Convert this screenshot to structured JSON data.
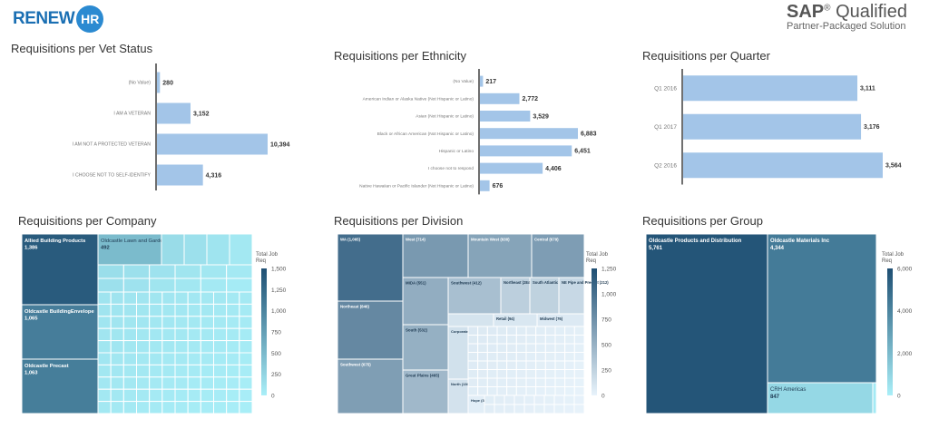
{
  "header": {
    "logo_text": "RENEW",
    "logo_mark": "HR",
    "sap_brand": "SAP",
    "sap_reg": "®",
    "sap_word": "Qualified",
    "sap_subtitle": "Partner-Packaged Solution"
  },
  "chart_data": [
    {
      "type": "bar",
      "orientation": "horizontal",
      "title": "Requisitions per Vet Status",
      "categories": [
        "(No Value)",
        "I AM A VETERAN",
        "I AM NOT A PROTECTED VETERAN",
        "I CHOOSE NOT TO SELF-IDENTIFY"
      ],
      "values": [
        280,
        3152,
        10394,
        4316
      ],
      "value_labels": [
        "280",
        "3,152",
        "10,394",
        "4,316"
      ],
      "color": "#a3c5e8"
    },
    {
      "type": "bar",
      "orientation": "horizontal",
      "title": "Requisitions per Ethnicity",
      "categories": [
        "(No Value)",
        "American Indian or Alaska Native (Not Hispanic or Latino)",
        "Asian (Not Hispanic or Latino)",
        "Black or African American (Not Hispanic or Latino)",
        "Hispanic or Latino",
        "I choose not to respond",
        "Native Hawaiian or Pacific Islander (Not Hispanic or Latino)"
      ],
      "values": [
        217,
        2772,
        3529,
        6883,
        6451,
        4406,
        676
      ],
      "value_labels": [
        "217",
        "2,772",
        "3,529",
        "6,883",
        "6,451",
        "4,406",
        "676"
      ],
      "color": "#a3c5e8"
    },
    {
      "type": "bar",
      "orientation": "horizontal",
      "title": "Requisitions per Quarter",
      "categories": [
        "Q1 2016",
        "Q1 2017",
        "Q2 2016"
      ],
      "values": [
        3111,
        3176,
        3564
      ],
      "value_labels": [
        "3,111",
        "3,176",
        "3,564"
      ],
      "color": "#a3c5e8"
    },
    {
      "type": "treemap",
      "title": "Requisitions per Company",
      "legend_title": "Total Job Req",
      "legend_ticks": [
        "1,500",
        "1,250",
        "1,000",
        "750",
        "500",
        "250",
        "0"
      ],
      "color_range": [
        "#1e4f73",
        "#a9eff8"
      ],
      "max": 1500,
      "items": [
        {
          "name": "Allied Building Products",
          "value_label": "1,386",
          "value": 1386
        },
        {
          "name": "Oldcastle BuildingEnvelope",
          "value_label": "1,065",
          "value": 1065
        },
        {
          "name": "Oldcastle Precast",
          "value_label": "1,063",
          "value": 1063
        },
        {
          "name": "Oldcastle Lawn and Garden",
          "value_label": "492",
          "value": 492
        }
      ]
    },
    {
      "type": "treemap",
      "title": "Requisitions per Division",
      "legend_title": "Total Job Req",
      "legend_ticks": [
        "1,250",
        "1,000",
        "750",
        "500",
        "250",
        "0"
      ],
      "color_range": [
        "#1e4f73",
        "#e8f3fb"
      ],
      "max": 1300,
      "items": [
        {
          "name": "WA (1,065)",
          "value": 1065
        },
        {
          "name": "Northeast (846)",
          "value": 846
        },
        {
          "name": "Southwest (675)",
          "value": 675
        },
        {
          "name": "West (714)",
          "value": 714
        },
        {
          "name": "Mountain West (630)",
          "value": 630
        },
        {
          "name": "Central (679)",
          "value": 679
        },
        {
          "name": "MIDA (551)",
          "value": 551
        },
        {
          "name": "Southwest (412)",
          "value": 412
        },
        {
          "name": "Northeast (284)",
          "value": 284
        },
        {
          "name": "South Atlantic (263)",
          "value": 263
        },
        {
          "name": "NE Pipe and Precast (212)",
          "value": 212
        },
        {
          "name": "South (532)",
          "value": 532
        },
        {
          "name": "Retail (94)",
          "value": 94
        },
        {
          "name": "Midwest (76)",
          "value": 76
        },
        {
          "name": "Corporate (145)",
          "value": 145
        },
        {
          "name": "Great Plains (465)",
          "value": 465
        },
        {
          "name": "North (136)",
          "value": 136
        },
        {
          "name": "Hope (36)",
          "value": 36
        }
      ]
    },
    {
      "type": "treemap",
      "title": "Requisitions per Group",
      "legend_title": "Total Job Req",
      "legend_ticks": [
        "6,000",
        "4,000",
        "2,000",
        "0"
      ],
      "color_range": [
        "#1e4f73",
        "#a9eff8"
      ],
      "max": 6000,
      "items": [
        {
          "name": "Oldcastle Products and Distribution",
          "value_label": "5,761",
          "value": 5761
        },
        {
          "name": "Oldcastle Materials Inc",
          "value_label": "4,344",
          "value": 4344
        },
        {
          "name": "CRH Americas",
          "value_label": "847",
          "value": 847
        }
      ]
    }
  ]
}
